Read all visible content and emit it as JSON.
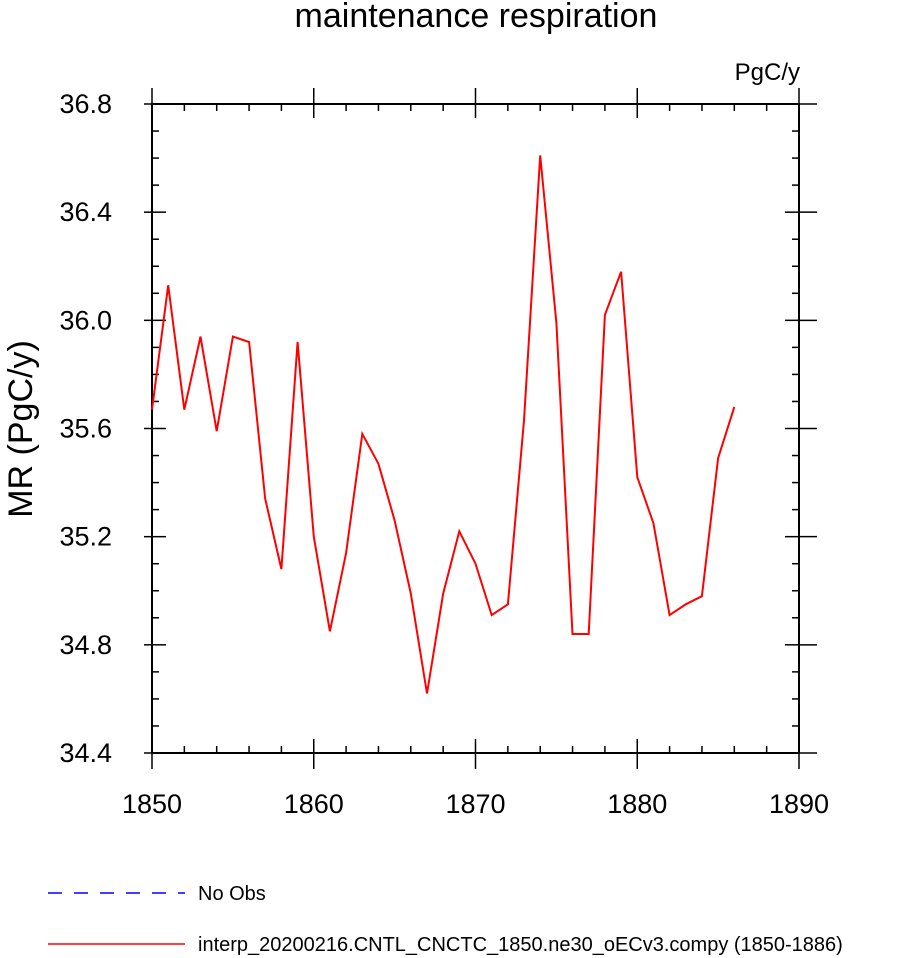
{
  "chart_data": {
    "type": "line",
    "title": "maintenance respiration",
    "units": "PgC/y",
    "ylabel": "MR  (PgC/y)",
    "xlabel": "",
    "xlim": [
      1850,
      1890
    ],
    "ylim": [
      34.4,
      36.8
    ],
    "xticks": [
      1850,
      1860,
      1870,
      1880,
      1890
    ],
    "xtick_labels": [
      "1850",
      "1860",
      "1870",
      "1880",
      "1890"
    ],
    "yticks": [
      34.4,
      34.8,
      35.2,
      35.6,
      36.0,
      36.4,
      36.8
    ],
    "ytick_labels": [
      "34.4",
      "34.8",
      "35.2",
      "35.6",
      "36.0",
      "36.4",
      "36.8"
    ],
    "grid": false,
    "legend_position": "bottom",
    "series": [
      {
        "name": "interp_20200216.CNTL_CNCTC_1850.ne30_oECv3.compy (1850-1886)",
        "color": "#ff0000",
        "dash": "solid",
        "x": [
          1850,
          1851,
          1852,
          1853,
          1854,
          1855,
          1856,
          1857,
          1858,
          1859,
          1860,
          1861,
          1862,
          1863,
          1864,
          1865,
          1866,
          1867,
          1868,
          1869,
          1870,
          1871,
          1872,
          1873,
          1874,
          1875,
          1876,
          1877,
          1878,
          1879,
          1880,
          1881,
          1882,
          1883,
          1884,
          1885,
          1886
        ],
        "values": [
          35.67,
          36.13,
          35.67,
          35.94,
          35.59,
          35.94,
          35.92,
          35.34,
          35.08,
          35.92,
          35.2,
          34.85,
          35.14,
          35.58,
          35.47,
          35.26,
          34.99,
          34.62,
          34.99,
          35.22,
          35.1,
          34.91,
          34.95,
          35.63,
          36.61,
          35.99,
          34.84,
          34.84,
          36.02,
          36.18,
          35.42,
          35.25,
          34.91,
          34.95,
          34.98,
          35.49,
          35.68
        ]
      }
    ],
    "legend": [
      {
        "label": "No Obs",
        "color": "#0000ff",
        "dash": "dashed"
      },
      {
        "label": "interp_20200216.CNTL_CNCTC_1850.ne30_oECv3.compy (1850-1886)",
        "color": "#ff0000",
        "dash": "solid"
      }
    ]
  }
}
